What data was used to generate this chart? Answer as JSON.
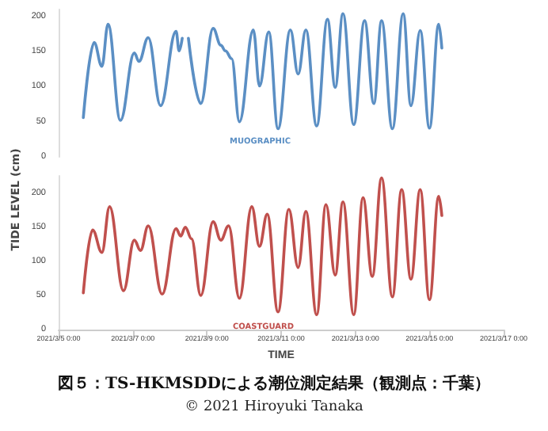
{
  "chart_data": [
    {
      "type": "line",
      "ylabel": "TIDE LEVEL (cm)",
      "tick_labels": "y",
      "grid": false,
      "legend": false,
      "marker": "none",
      "line_style": "solid",
      "xlim": [
        "2021-03-05T00:00",
        "2021-03-17T00:00"
      ],
      "ylim": [
        0,
        210
      ],
      "yticks": [
        0,
        50,
        100,
        150,
        200
      ],
      "series": [
        {
          "name": "MUOGRAPHIC",
          "color": "#5b8fc4",
          "x": [
            "2021-03-05T16:00",
            "2021-03-05T23:00",
            "2021-03-06T04:00",
            "2021-03-06T08:00",
            "2021-03-06T16:00",
            "2021-03-07T01:00",
            "2021-03-07T04:00",
            "2021-03-07T10:00",
            "2021-03-07T18:00",
            "2021-03-08T04:00",
            "2021-03-08T06:00",
            "2021-03-08T08:00",
            "2021-03-08T10:00",
            "2021-03-08T12:00",
            "2021-03-08T20:00",
            "2021-03-09T04:00",
            "2021-03-09T09:00",
            "2021-03-09T12:00",
            "2021-03-09T16:00",
            "2021-03-09T21:00",
            "2021-03-10T06:00",
            "2021-03-10T10:00",
            "2021-03-10T16:00",
            "2021-03-10T22:00",
            "2021-03-11T06:00",
            "2021-03-11T11:00",
            "2021-03-11T16:00",
            "2021-03-11T23:00",
            "2021-03-12T06:00",
            "2021-03-12T11:00",
            "2021-03-12T16:00",
            "2021-03-12T23:00",
            "2021-03-13T06:00",
            "2021-03-13T12:00",
            "2021-03-13T17:00",
            "2021-03-14T00:00",
            "2021-03-14T07:00",
            "2021-03-14T12:00",
            "2021-03-14T18:00",
            "2021-03-15T00:00",
            "2021-03-15T06:00",
            "2021-03-15T08:00"
          ],
          "values": [
            56,
            163,
            129,
            189,
            52,
            148,
            136,
            170,
            73,
            179,
            151,
            169,
            null,
            169,
            76,
            183,
            159,
            151,
            140,
            50,
            181,
            101,
            178,
            40,
            181,
            118,
            181,
            44,
            196,
            99,
            204,
            46,
            194,
            76,
            194,
            40,
            204,
            73,
            180,
            41,
            189,
            155
          ]
        }
      ]
    },
    {
      "type": "line",
      "xlabel": "TIME",
      "grid": false,
      "legend": false,
      "marker": "none",
      "line_style": "solid",
      "xlim": [
        "2021-03-05T00:00",
        "2021-03-17T00:00"
      ],
      "xticks": [
        {
          "value": "2021-03-05T00:00",
          "label": "2021/3/5 0:00"
        },
        {
          "value": "2021-03-07T00:00",
          "label": "2021/3/7 0:00"
        },
        {
          "value": "2021-03-09T00:00",
          "label": "2021/3/9 0:00"
        },
        {
          "value": "2021-03-11T00:00",
          "label": "2021/3/11 0:00"
        },
        {
          "value": "2021-03-13T00:00",
          "label": "2021/3/13 0:00"
        },
        {
          "value": "2021-03-15T00:00",
          "label": "2021/3/15 0:00"
        },
        {
          "value": "2021-03-17T00:00",
          "label": "2021/3/17 0:00"
        }
      ],
      "ylim": [
        0,
        225
      ],
      "yticks": [
        0,
        50,
        100,
        150,
        200
      ],
      "annotations": [
        "図５：TS-HKMSDDによる潮位測定結果（観測点：千葉）",
        "© 2021 Hiroyuki Tanaka"
      ],
      "series": [
        {
          "name": "COASTGUARD",
          "color": "#c0504d",
          "x": [
            "2021-03-05T16:00",
            "2021-03-05T22:00",
            "2021-03-06T04:00",
            "2021-03-06T09:00",
            "2021-03-06T18:00",
            "2021-03-07T01:00",
            "2021-03-07T05:00",
            "2021-03-07T10:00",
            "2021-03-07T19:00",
            "2021-03-08T04:00",
            "2021-03-08T07:00",
            "2021-03-08T10:00",
            "2021-03-08T14:00",
            "2021-03-08T20:00",
            "2021-03-09T04:00",
            "2021-03-09T09:00",
            "2021-03-09T14:00",
            "2021-03-09T21:00",
            "2021-03-10T05:00",
            "2021-03-10T10:00",
            "2021-03-10T15:00",
            "2021-03-10T22:00",
            "2021-03-11T05:00",
            "2021-03-11T11:00",
            "2021-03-11T16:00",
            "2021-03-11T23:00",
            "2021-03-12T05:00",
            "2021-03-12T11:00",
            "2021-03-12T16:00",
            "2021-03-12T23:00",
            "2021-03-13T05:00",
            "2021-03-13T11:00",
            "2021-03-13T17:00",
            "2021-03-14T00:00",
            "2021-03-14T06:00",
            "2021-03-14T12:00",
            "2021-03-14T18:00",
            "2021-03-15T00:00",
            "2021-03-15T06:00",
            "2021-03-15T08:00"
          ],
          "values": [
            54,
            146,
            113,
            180,
            57,
            131,
            116,
            152,
            52,
            148,
            137,
            150,
            133,
            50,
            158,
            131,
            152,
            46,
            180,
            122,
            169,
            26,
            176,
            91,
            173,
            22,
            183,
            80,
            187,
            22,
            193,
            78,
            222,
            48,
            205,
            74,
            205,
            44,
            195,
            167
          ]
        }
      ]
    }
  ]
}
